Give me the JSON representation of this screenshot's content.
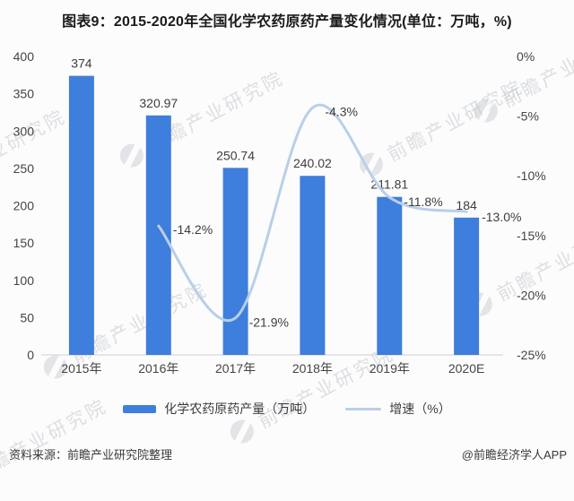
{
  "title": "图表9：2015-2020年全国化学农药原药产量变化情况(单位：万吨，%)",
  "watermark": {
    "text": "前瞻产业研究院"
  },
  "chart_data": {
    "type": "bar+line",
    "categories": [
      "2015年",
      "2016年",
      "2017年",
      "2018年",
      "2019年",
      "2020E"
    ],
    "series": [
      {
        "name": "化学农药原药产量（万吨）",
        "type": "bar",
        "axis": "left",
        "values": [
          374,
          320.97,
          250.74,
          240.02,
          211.81,
          184
        ],
        "labels": [
          "374",
          "320.97",
          "250.74",
          "240.02",
          "211.81",
          "184"
        ]
      },
      {
        "name": "增速（%）",
        "type": "line",
        "axis": "right",
        "values": [
          null,
          -14.2,
          -21.9,
          -4.3,
          -11.8,
          -13.0
        ],
        "labels": [
          null,
          "-14.2%",
          "-21.9%",
          "-4.3%",
          "-11.8%",
          "-13.0%"
        ]
      }
    ],
    "left_axis": {
      "min": 0,
      "max": 400,
      "ticks": [
        "400",
        "350",
        "300",
        "250",
        "200",
        "150",
        "100",
        "50",
        "0"
      ]
    },
    "right_axis": {
      "min": -25,
      "max": 0,
      "ticks": [
        "0%",
        "-5%",
        "-10%",
        "-15%",
        "-20%",
        "-25%"
      ]
    },
    "legend_position": "bottom",
    "grid": false,
    "colors": {
      "bar": "#3e7edc",
      "line": "#b9cfe8",
      "axis_line": "#d9d9d9",
      "label": "#3d3d3d",
      "tick": "#454545"
    }
  },
  "legend": {
    "bar_label": "化学农药原药产量（万吨）",
    "line_label": "增速（%）"
  },
  "footer": {
    "source": "资料来源：前瞻产业研究院整理",
    "credit": "@前瞻经济学人APP"
  }
}
